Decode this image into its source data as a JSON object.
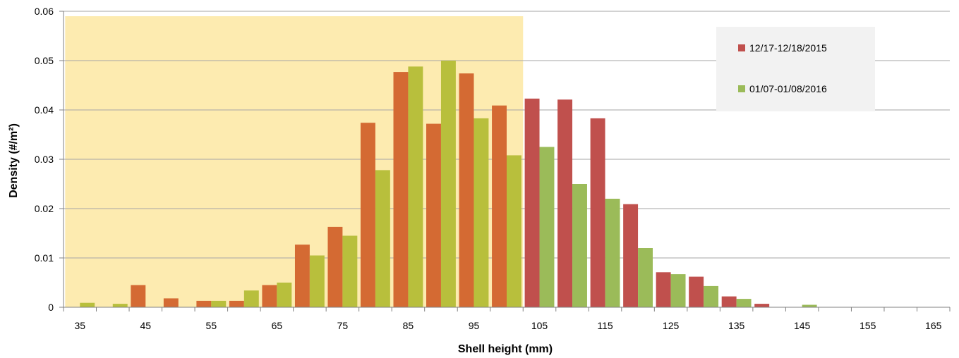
{
  "chart_data": {
    "type": "bar",
    "title": "",
    "xlabel": "Shell height (mm)",
    "ylabel": "Density (#/m²)",
    "ylim": [
      0,
      0.06
    ],
    "yticks": [
      "0",
      "0.01",
      "0.02",
      "0.03",
      "0.04",
      "0.05",
      "0.06"
    ],
    "categories": [
      35,
      40,
      45,
      50,
      55,
      60,
      65,
      70,
      75,
      80,
      85,
      90,
      95,
      100,
      105,
      110,
      115,
      120,
      125,
      130,
      135,
      140,
      145,
      150,
      155,
      160,
      165
    ],
    "tick_labels": [
      "35",
      "45",
      "55",
      "65",
      "75",
      "85",
      "95",
      "105",
      "115",
      "125",
      "135",
      "145",
      "155",
      "165"
    ],
    "grid": true,
    "legend_position": "top-right",
    "highlight_region": {
      "from": 35,
      "to": 100,
      "color": "#FDEBB0"
    },
    "series": [
      {
        "name": "12/17-12/18/2015",
        "color": "#C0504D",
        "highlight_color": "#D46A33",
        "values": [
          0,
          0,
          0.0045,
          0.0018,
          0.0013,
          0.0013,
          0.0045,
          0.0127,
          0.0163,
          0.0374,
          0.0477,
          0.0372,
          0.0474,
          0.0409,
          0.0423,
          0.0421,
          0.0383,
          0.0209,
          0.0071,
          0.0062,
          0.0022,
          0.0007,
          0,
          0,
          0,
          0,
          0
        ]
      },
      {
        "name": "01/07-01/08/2016",
        "color": "#9BBB59",
        "highlight_color": "#B8BF3C",
        "values": [
          0.0009,
          0.0007,
          0,
          0,
          0.0013,
          0.0034,
          0.005,
          0.0105,
          0.0145,
          0.0278,
          0.0488,
          0.05,
          0.0383,
          0.0308,
          0.0325,
          0.025,
          0.022,
          0.012,
          0.0067,
          0.0043,
          0.0017,
          0,
          0.0005,
          0,
          0,
          0,
          0
        ]
      }
    ]
  }
}
